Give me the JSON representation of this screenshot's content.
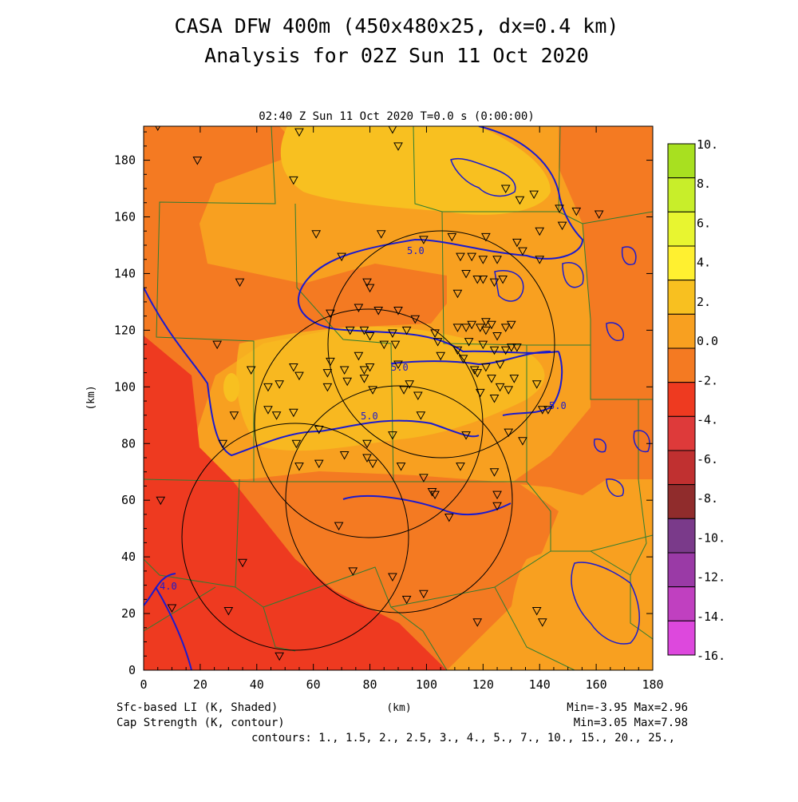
{
  "header": {
    "title_line1": "CASA DFW 400m (450x480x25, dx=0.4 km)",
    "title_line2": "Analysis for 02Z Sun 11 Oct 2020"
  },
  "plot": {
    "time_label": "02:40 Z Sun 11 Oct 2020    T=0.0 s (0:00:00)"
  },
  "footer": {
    "field1": "Sfc-based LI (K, Shaded)",
    "field2": "Cap Strength (K, contour)",
    "xunit": "(km)",
    "minmax1": "Min=-3.95 Max=2.96",
    "minmax2": "Min=3.05 Max=7.98",
    "contours": "contours: 1., 1.5, 2., 2.5, 3., 4., 5., 7., 10., 15., 20., 25.,"
  },
  "chart_data": {
    "type": "heatmap",
    "xlabel": "(km)",
    "ylabel": "(km)",
    "xlim": [
      0,
      180
    ],
    "ylim": [
      0,
      192
    ],
    "x_ticks": [
      0,
      20,
      40,
      60,
      80,
      100,
      120,
      140,
      160,
      180
    ],
    "y_ticks": [
      0,
      20,
      40,
      60,
      80,
      100,
      120,
      140,
      160,
      180
    ],
    "shaded_field": "Sfc-based LI (K, Shaded)",
    "contour_field": "Cap Strength (K, contour)",
    "shaded_min": -3.95,
    "shaded_max": 2.96,
    "contour_min": 3.05,
    "contour_max": 7.98,
    "contour_levels": [
      1,
      1.5,
      2,
      2.5,
      3,
      4,
      5,
      7,
      10,
      15,
      20,
      25
    ],
    "contour_labels": [
      "5.0",
      "5.0",
      "5.0",
      "5.0",
      "4.0"
    ],
    "colorbar": {
      "labels": [
        "10.",
        "8.",
        "6.",
        "4.",
        "2.",
        "0.0",
        "-2.",
        "-4.",
        "-6.",
        "-8.",
        "-10.",
        "-12.",
        "-14.",
        "-16."
      ],
      "colors": [
        "#a8e020",
        "#c8ee2a",
        "#e8f530",
        "#fff030",
        "#f8c020",
        "#f8a020",
        "#f47a22",
        "#ee3a20",
        "#de3a3a",
        "#c03030",
        "#902c2c",
        "#7a3a8a",
        "#9a3aa6",
        "#c040c0",
        "#dd48dd"
      ]
    }
  }
}
